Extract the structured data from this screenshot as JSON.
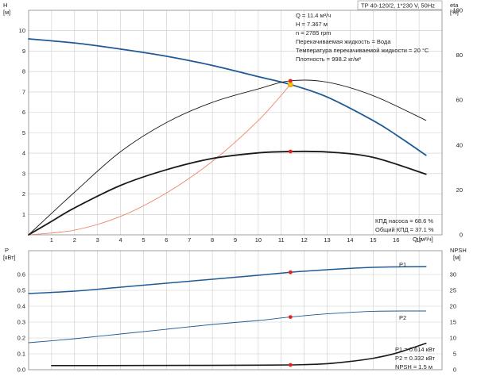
{
  "header": {
    "title": "TP 40-120/2, 1*230 V, 50Hz"
  },
  "info_top": [
    "Q = 11.4 м³/ч",
    "H = 7.367 м",
    "n = 2785 rpm",
    "Перекачиваемая жидкость = Вода",
    "Температура перекачиваемой жидкости = 20 °C",
    "Плотность = 998.2 кг/м³"
  ],
  "info_eff": [
    "КПД насоса = 68.6 %",
    "Общий КПД = 37.1 %"
  ],
  "info_power": [
    "P1 = 0.614 кВт",
    "P2 = 0.332 кВт",
    "NPSH = 1.5 м"
  ],
  "colors": {
    "h_curve": "#1f5a96",
    "p_curves": "#1f5a96",
    "system": "#f0826e",
    "eta": "#1a1a1a",
    "marker": "#e8201f",
    "op_point": "#f2c21b",
    "grid": "#cccccc"
  },
  "chart_data": [
    {
      "type": "line",
      "id": "head-efficiency",
      "xlabel": "Q [м³/ч]",
      "ylabel": "H [м]",
      "y2label": "eta [%]",
      "xlim": [
        0,
        18
      ],
      "ylim": [
        0,
        11
      ],
      "y2lim": [
        0,
        100
      ],
      "x_ticks": [
        1,
        2,
        3,
        4,
        5,
        6,
        7,
        8,
        9,
        10,
        11,
        12,
        13,
        14,
        15,
        16,
        17
      ],
      "y_ticks": [
        1,
        2,
        3,
        4,
        5,
        6,
        7,
        8,
        9,
        10
      ],
      "y2_ticks": [
        0,
        20,
        40,
        60,
        80,
        100
      ],
      "grid": true,
      "series": [
        {
          "name": "H",
          "axis": "y",
          "x": [
            0,
            2,
            4,
            6,
            8,
            10,
            11.4,
            13,
            15,
            16,
            17.3
          ],
          "y": [
            9.6,
            9.4,
            9.1,
            8.75,
            8.3,
            7.75,
            7.367,
            6.75,
            5.6,
            4.9,
            3.9
          ]
        },
        {
          "name": "system",
          "axis": "y",
          "x": [
            0,
            2,
            4,
            6,
            8,
            10,
            11.4
          ],
          "y": [
            0,
            0.23,
            0.9,
            2.05,
            3.6,
            5.6,
            7.367
          ]
        },
        {
          "name": "eta_total",
          "axis": "y2",
          "x": [
            0,
            1,
            2,
            4,
            6,
            8,
            10,
            11.4,
            13,
            15,
            17.3
          ],
          "y": [
            0,
            6,
            12,
            22,
            29,
            34,
            36.5,
            37.1,
            36.9,
            34.5,
            27
          ]
        },
        {
          "name": "eta_pump",
          "axis": "y2",
          "x": [
            0,
            2,
            4,
            6,
            8,
            10,
            11.4,
            13,
            15,
            17.3
          ],
          "y": [
            0,
            19,
            37,
            50,
            59,
            65,
            68.6,
            68,
            62,
            51
          ]
        }
      ],
      "markers": [
        {
          "series": "H",
          "x": 11.4,
          "y": 7.367
        },
        {
          "series": "eta_pump",
          "x": 11.4,
          "y": 68.6
        },
        {
          "series": "eta_total",
          "x": 11.4,
          "y": 37.1
        }
      ]
    },
    {
      "type": "line",
      "id": "power-npsh",
      "xlabel": "",
      "ylabel": "P [кВт]",
      "y2label": "NPSH [м]",
      "xlim": [
        0,
        18
      ],
      "ylim": [
        0,
        0.75
      ],
      "y2lim": [
        0,
        37.5
      ],
      "y_ticks": [
        0.0,
        0.1,
        0.2,
        0.3,
        0.4,
        0.5,
        0.6
      ],
      "y_tick_labels": [
        "0.0",
        "0.1",
        "0.2",
        "0.3",
        "0.4",
        "0.5",
        "0.6"
      ],
      "y2_ticks": [
        0,
        5,
        10,
        15,
        20,
        25,
        30
      ],
      "grid": true,
      "series": [
        {
          "name": "P1",
          "axis": "y",
          "x": [
            0,
            2,
            4,
            6,
            8,
            10,
            11.4,
            13,
            15,
            17.3
          ],
          "y": [
            0.48,
            0.495,
            0.52,
            0.545,
            0.57,
            0.595,
            0.614,
            0.63,
            0.645,
            0.65
          ]
        },
        {
          "name": "P2",
          "axis": "y",
          "x": [
            0,
            2,
            4,
            6,
            8,
            10,
            11.4,
            13,
            15,
            17.3
          ],
          "y": [
            0.17,
            0.195,
            0.225,
            0.255,
            0.285,
            0.31,
            0.332,
            0.352,
            0.368,
            0.37
          ]
        },
        {
          "name": "NPSH",
          "axis": "y2",
          "x": [
            1,
            3,
            5,
            7,
            9,
            11.4,
            13,
            14,
            15,
            16,
            17.3
          ],
          "y": [
            1.3,
            1.3,
            1.32,
            1.35,
            1.4,
            1.5,
            1.9,
            2.6,
            3.6,
            5.2,
            8.3
          ]
        }
      ],
      "markers": [
        {
          "series": "P1",
          "x": 11.4,
          "y": 0.614
        },
        {
          "series": "P2",
          "x": 11.4,
          "y": 0.332
        },
        {
          "series": "NPSH",
          "x": 11.4,
          "y": 1.5
        }
      ]
    }
  ]
}
